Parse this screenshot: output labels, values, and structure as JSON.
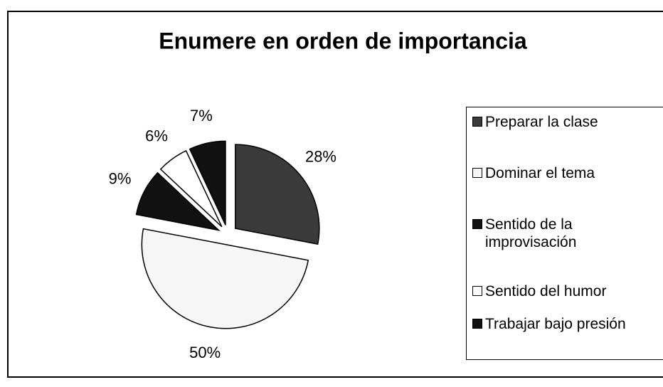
{
  "chart_data": {
    "type": "pie",
    "title": "Enumere en orden de importancia",
    "categories": [
      "Preparar la clase",
      "Dominar el tema",
      "Sentido de la improvisación",
      "Sentido del humor",
      "Trabajar bajo presión"
    ],
    "values": [
      28,
      50,
      9,
      6,
      7
    ],
    "value_labels": [
      "28%",
      "50%",
      "9%",
      "6%",
      "7%"
    ],
    "colors": [
      "#3a3a3a",
      "#f6f6f6",
      "#111111",
      "#ffffff",
      "#111111"
    ],
    "legend": "right"
  }
}
